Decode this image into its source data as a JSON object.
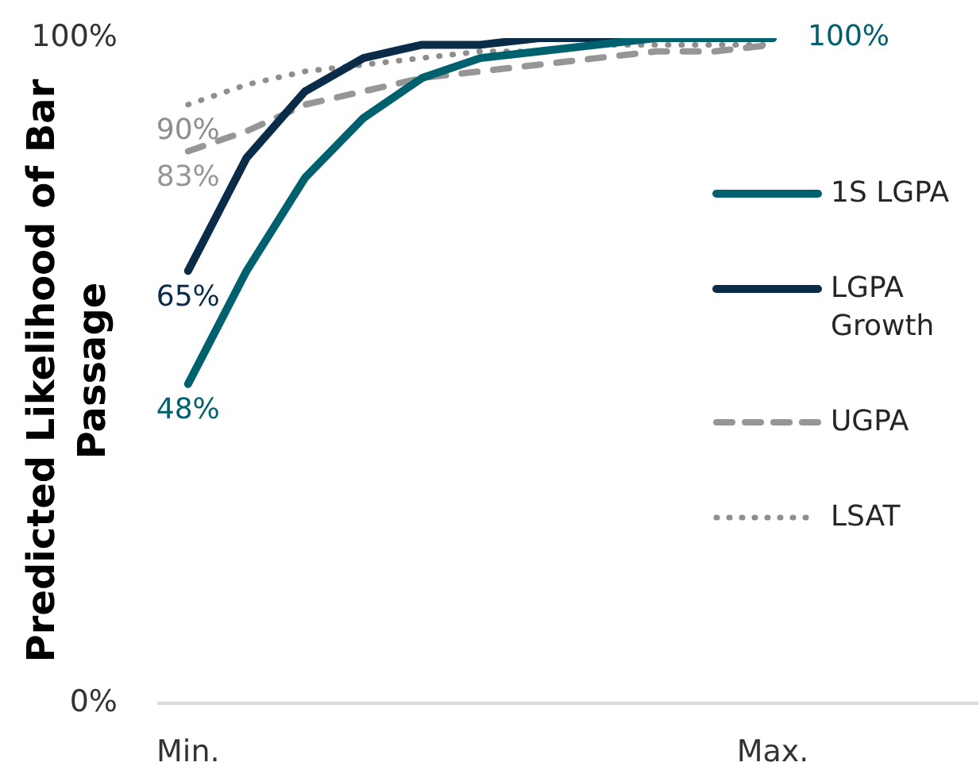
{
  "chart_data": {
    "type": "line",
    "ylabel": "Predicted Likelihood of Bar Passage",
    "categories": [
      "Min.",
      null,
      null,
      null,
      null,
      null,
      null,
      null,
      null,
      null,
      "Max.",
      null,
      null,
      null
    ],
    "series": [
      {
        "name": "1S LGPA",
        "color": "#00616e",
        "line_style": "solid",
        "values": [
          48,
          65,
          79,
          88,
          94,
          97,
          98,
          99,
          100,
          100,
          100,
          null,
          null,
          null
        ],
        "value_labels": [
          "48%",
          null,
          null,
          null,
          null,
          null,
          null,
          null,
          null,
          null,
          "100%",
          null,
          null,
          null
        ]
      },
      {
        "name": "LGPA Growth",
        "color": "#0a2c48",
        "line_style": "solid",
        "values": [
          65,
          82,
          92,
          97,
          99,
          99,
          100,
          100,
          100,
          100,
          100,
          null,
          null,
          null
        ],
        "value_labels": [
          "65%",
          null,
          null,
          null,
          null,
          null,
          null,
          null,
          null,
          null,
          null,
          null,
          null,
          null
        ]
      },
      {
        "name": "UGPA",
        "color": "#969696",
        "line_style": "dashed",
        "values": [
          83,
          86,
          90,
          92,
          94,
          95,
          96,
          97,
          98,
          98,
          99,
          null,
          null,
          null
        ],
        "value_labels": [
          "83%",
          null,
          null,
          null,
          null,
          null,
          null,
          null,
          null,
          null,
          null,
          null,
          null,
          null
        ]
      },
      {
        "name": "LSAT",
        "color": "#8e8e8e",
        "line_style": "dotted",
        "values": [
          90,
          93,
          95,
          96,
          97,
          98,
          98,
          99,
          99,
          99,
          99,
          null,
          null,
          null
        ],
        "value_labels": [
          "90%",
          null,
          null,
          null,
          null,
          null,
          null,
          null,
          null,
          null,
          null,
          null,
          null,
          null
        ]
      }
    ],
    "ylim": [
      0,
      100
    ],
    "yticks": [
      {
        "value": 0,
        "label": "0%"
      },
      {
        "value": 100,
        "label": "100%"
      }
    ],
    "legend": "right",
    "marker": "none"
  }
}
